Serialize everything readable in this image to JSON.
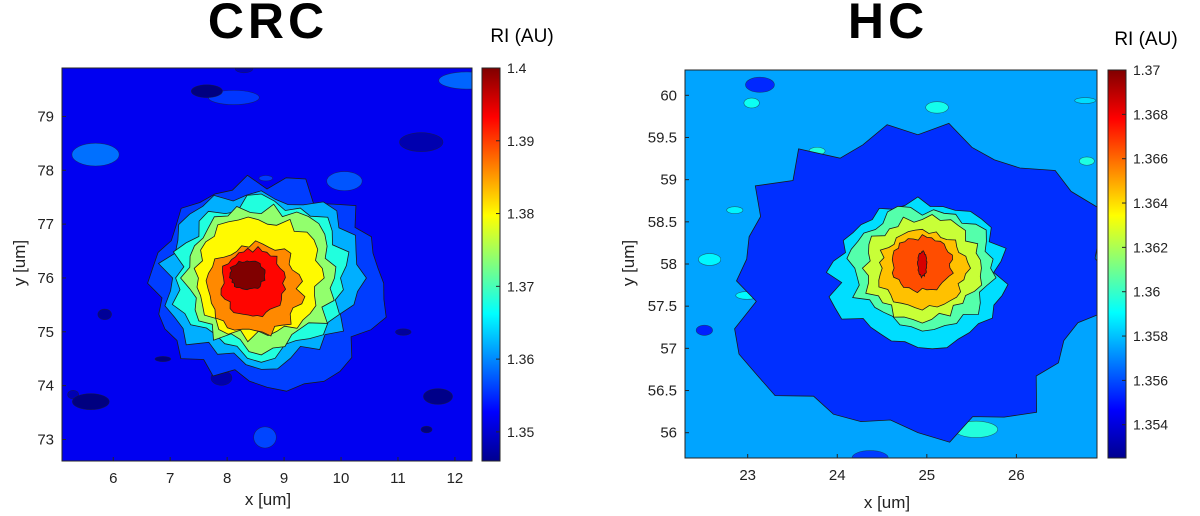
{
  "chart_data": [
    {
      "type": "heatmap",
      "subtype": "filled-contour",
      "title": "CRC",
      "xlabel": "x [um]",
      "ylabel": "y [um]",
      "colorbar_label": "RI (AU)",
      "colormap": "jet",
      "xlim": [
        5.1,
        12.3
      ],
      "ylim": [
        72.6,
        79.9
      ],
      "xticks": [
        6,
        7,
        8,
        9,
        10,
        11,
        12
      ],
      "yticks": [
        73,
        74,
        75,
        76,
        77,
        78,
        79
      ],
      "clim": [
        1.346,
        1.4
      ],
      "cticks": [
        "1.35",
        "1.36",
        "1.37",
        "1.38",
        "1.39",
        "1.4"
      ],
      "peak": {
        "x": 8.4,
        "y": 76.0,
        "value": 1.4
      },
      "background_value": 1.352,
      "contours": [
        {
          "level": 1.356,
          "cx": 8.7,
          "cy": 75.9,
          "rx": 2.0,
          "ry": 1.85
        },
        {
          "level": 1.362,
          "cx": 8.6,
          "cy": 76.0,
          "rx": 1.7,
          "ry": 1.6
        },
        {
          "level": 1.368,
          "cx": 8.6,
          "cy": 76.0,
          "rx": 1.5,
          "ry": 1.45
        },
        {
          "level": 1.374,
          "cx": 8.6,
          "cy": 76.0,
          "rx": 1.3,
          "ry": 1.3
        },
        {
          "level": 1.38,
          "cx": 8.55,
          "cy": 76.0,
          "rx": 1.1,
          "ry": 1.1
        },
        {
          "level": 1.386,
          "cx": 8.5,
          "cy": 75.8,
          "rx": 0.8,
          "ry": 0.85
        },
        {
          "level": 1.393,
          "cx": 8.45,
          "cy": 75.9,
          "rx": 0.55,
          "ry": 0.65
        },
        {
          "level": 1.4,
          "cx": 8.35,
          "cy": 76.05,
          "rx": 0.3,
          "ry": 0.28
        }
      ]
    },
    {
      "type": "heatmap",
      "subtype": "filled-contour",
      "title": "HC",
      "xlabel": "x [um]",
      "ylabel": "y [um]",
      "colorbar_label": "RI (AU)",
      "colormap": "jet",
      "xlim": [
        22.3,
        26.9
      ],
      "ylim": [
        55.7,
        60.3
      ],
      "xticks": [
        23,
        24,
        25,
        26
      ],
      "yticks": [
        56,
        56.5,
        57,
        57.5,
        58,
        58.5,
        59,
        59.5,
        60
      ],
      "clim": [
        1.3525,
        1.37
      ],
      "cticks": [
        "1.354",
        "1.356",
        "1.358",
        "1.36",
        "1.362",
        "1.364",
        "1.366",
        "1.368",
        "1.37"
      ],
      "peak": {
        "x": 25.0,
        "y": 58.0,
        "value": 1.368
      },
      "background_value": 1.3575,
      "contours": [
        {
          "level": 1.3555,
          "cx": 24.9,
          "cy": 57.8,
          "rx": 2.05,
          "ry": 1.75
        },
        {
          "level": 1.3585,
          "cx": 24.9,
          "cy": 57.9,
          "rx": 0.95,
          "ry": 0.85
        },
        {
          "level": 1.3605,
          "cx": 24.95,
          "cy": 57.95,
          "rx": 0.8,
          "ry": 0.7
        },
        {
          "level": 1.3625,
          "cx": 24.95,
          "cy": 57.95,
          "rx": 0.65,
          "ry": 0.6
        },
        {
          "level": 1.3645,
          "cx": 24.95,
          "cy": 57.95,
          "rx": 0.5,
          "ry": 0.45
        },
        {
          "level": 1.3665,
          "cx": 24.95,
          "cy": 58.0,
          "rx": 0.33,
          "ry": 0.32
        },
        {
          "level": 1.3685,
          "cx": 24.95,
          "cy": 58.0,
          "rx": 0.05,
          "ry": 0.15
        }
      ]
    }
  ]
}
